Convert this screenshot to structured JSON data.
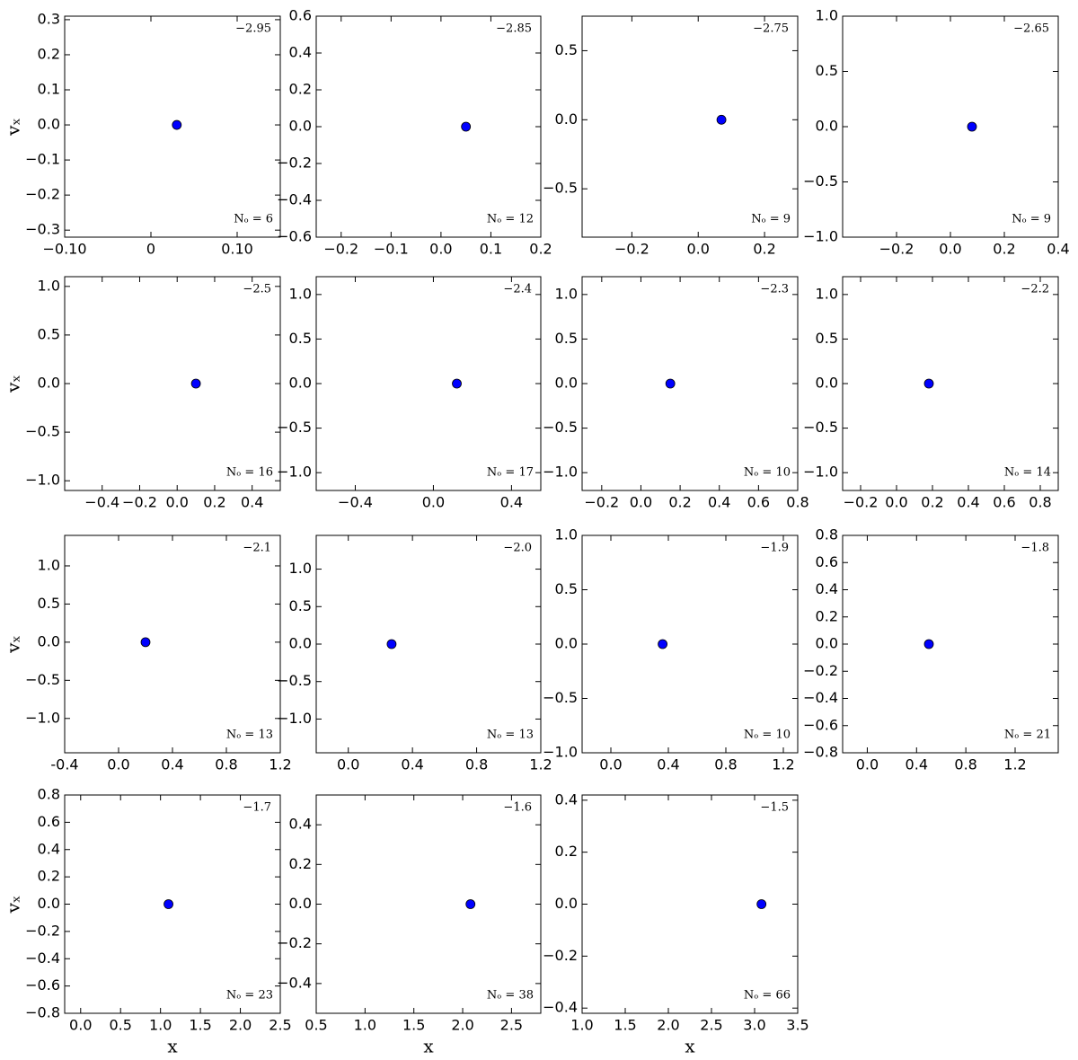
{
  "chart_data": [
    {
      "type": "scatter",
      "annotations": [
        "−2.95",
        "Nₒ = 6"
      ],
      "ylabel": "vₓ",
      "x": [
        0.03
      ],
      "values": [
        0
      ],
      "color": "#0000ff",
      "xlim": [
        -0.1,
        0.15
      ],
      "xticks": [
        {
          "value": -0.1,
          "label": "−0.10"
        },
        0,
        {
          "value": 0.1,
          "label": "0.10"
        }
      ],
      "ylim": [
        -0.32,
        0.31
      ],
      "yticks": [
        {
          "value": -0.3,
          "label": "−0.3"
        },
        {
          "value": -0.2,
          "label": "−0.2"
        },
        {
          "value": -0.1,
          "label": "−0.1"
        },
        {
          "value": 0,
          "label": "0.0"
        },
        {
          "value": 0.1,
          "label": "0.1"
        },
        {
          "value": 0.2,
          "label": "0.2"
        },
        {
          "value": 0.3,
          "label": "0.3"
        }
      ]
    },
    {
      "type": "scatter",
      "annotations": [
        "−2.85",
        "Nₒ = 12"
      ],
      "x": [
        0.05
      ],
      "values": [
        0
      ],
      "color": "#0000ff",
      "xlim": [
        -0.25,
        0.2
      ],
      "xticks": [
        {
          "value": -0.2,
          "label": "−0.2"
        },
        {
          "value": -0.1,
          "label": "−0.1"
        },
        {
          "value": 0,
          "label": "0.0"
        },
        {
          "value": 0.1,
          "label": "0.1"
        },
        {
          "value": 0.2,
          "label": "0.2"
        }
      ],
      "ylim": [
        -0.6,
        0.6
      ],
      "yticks": [
        {
          "value": -0.6,
          "label": "−0.6"
        },
        {
          "value": -0.4,
          "label": "−0.4"
        },
        {
          "value": -0.2,
          "label": "−0.2"
        },
        {
          "value": 0,
          "label": "0.0"
        },
        {
          "value": 0.2,
          "label": "0.2"
        },
        {
          "value": 0.4,
          "label": "0.4"
        },
        {
          "value": 0.6,
          "label": "0.6"
        }
      ]
    },
    {
      "type": "scatter",
      "annotations": [
        "−2.75",
        "Nₒ = 9"
      ],
      "x": [
        0.07
      ],
      "values": [
        0
      ],
      "color": "#0000ff",
      "xlim": [
        -0.35,
        0.3
      ],
      "xticks": [
        {
          "value": -0.2,
          "label": "−0.2"
        },
        {
          "value": 0,
          "label": "0.0"
        },
        {
          "value": 0.2,
          "label": "0.2"
        }
      ],
      "ylim": [
        -0.85,
        0.75
      ],
      "yticks": [
        {
          "value": -0.5,
          "label": "−0.5"
        },
        {
          "value": 0,
          "label": "0.0"
        },
        {
          "value": 0.5,
          "label": "0.5"
        }
      ]
    },
    {
      "type": "scatter",
      "annotations": [
        "−2.65",
        "Nₒ = 9"
      ],
      "x": [
        0.08
      ],
      "values": [
        0
      ],
      "color": "#0000ff",
      "xlim": [
        -0.4,
        0.4
      ],
      "xticks": [
        {
          "value": -0.2,
          "label": "−0.2"
        },
        {
          "value": 0,
          "label": "0.0"
        },
        {
          "value": 0.2,
          "label": "0.2"
        },
        {
          "value": 0.4,
          "label": "0.4"
        }
      ],
      "ylim": [
        -1,
        1
      ],
      "yticks": [
        {
          "value": -1,
          "label": "−1.0"
        },
        {
          "value": -0.5,
          "label": "−0.5"
        },
        {
          "value": 0,
          "label": "0.0"
        },
        {
          "value": 0.5,
          "label": "0.5"
        },
        {
          "value": 1,
          "label": "1.0"
        }
      ]
    },
    {
      "type": "scatter",
      "annotations": [
        "−2.5",
        "Nₒ = 16"
      ],
      "ylabel": "vₓ",
      "x": [
        0.1
      ],
      "values": [
        0
      ],
      "color": "#0000ff",
      "xlim": [
        -0.6,
        0.55
      ],
      "xticks": [
        {
          "value": -0.4,
          "label": "−0.4"
        },
        {
          "value": -0.2,
          "label": "−0.2"
        },
        {
          "value": 0,
          "label": "0.0"
        },
        {
          "value": 0.2,
          "label": "0.2"
        },
        {
          "value": 0.4,
          "label": "0.4"
        }
      ],
      "ylim": [
        -1.1,
        1.1
      ],
      "yticks": [
        {
          "value": -1,
          "label": "−1.0"
        },
        {
          "value": -0.5,
          "label": "−0.5"
        },
        {
          "value": 0,
          "label": "0.0"
        },
        {
          "value": 0.5,
          "label": "0.5"
        },
        {
          "value": 1,
          "label": "1.0"
        }
      ]
    },
    {
      "type": "scatter",
      "annotations": [
        "−2.4",
        "Nₒ = 17"
      ],
      "x": [
        0.12
      ],
      "values": [
        0
      ],
      "color": "#0000ff",
      "xlim": [
        -0.6,
        0.55
      ],
      "xticks": [
        {
          "value": -0.4,
          "label": "−0.4"
        },
        {
          "value": 0,
          "label": "0.0"
        },
        {
          "value": 0.4,
          "label": "0.4"
        }
      ],
      "ylim": [
        -1.2,
        1.2
      ],
      "yticks": [
        {
          "value": -1,
          "label": "−1.0"
        },
        {
          "value": -0.5,
          "label": "−0.5"
        },
        {
          "value": 0,
          "label": "0.0"
        },
        {
          "value": 0.5,
          "label": "0.5"
        },
        {
          "value": 1,
          "label": "1.0"
        }
      ]
    },
    {
      "type": "scatter",
      "annotations": [
        "−2.3",
        "Nₒ = 10"
      ],
      "x": [
        0.15
      ],
      "values": [
        0
      ],
      "color": "#0000ff",
      "xlim": [
        -0.3,
        0.8
      ],
      "xticks": [
        {
          "value": -0.2,
          "label": "−0.2"
        },
        {
          "value": 0,
          "label": "0.0"
        },
        {
          "value": 0.2,
          "label": "0.2"
        },
        {
          "value": 0.4,
          "label": "0.4"
        },
        {
          "value": 0.6,
          "label": "0.6"
        },
        {
          "value": 0.8,
          "label": "0.8"
        }
      ],
      "ylim": [
        -1.2,
        1.2
      ],
      "yticks": [
        {
          "value": -1,
          "label": "−1.0"
        },
        {
          "value": -0.5,
          "label": "−0.5"
        },
        {
          "value": 0,
          "label": "0.0"
        },
        {
          "value": 0.5,
          "label": "0.5"
        },
        {
          "value": 1,
          "label": "1.0"
        }
      ]
    },
    {
      "type": "scatter",
      "annotations": [
        "−2.2",
        "Nₒ = 14"
      ],
      "x": [
        0.18
      ],
      "values": [
        0
      ],
      "color": "#0000ff",
      "xlim": [
        -0.3,
        0.9
      ],
      "xticks": [
        {
          "value": -0.2,
          "label": "−0.2"
        },
        {
          "value": 0,
          "label": "0.0"
        },
        {
          "value": 0.2,
          "label": "0.2"
        },
        {
          "value": 0.4,
          "label": "0.4"
        },
        {
          "value": 0.6,
          "label": "0.6"
        },
        {
          "value": 0.8,
          "label": "0.8"
        }
      ],
      "ylim": [
        -1.2,
        1.2
      ],
      "yticks": [
        {
          "value": -1,
          "label": "−1.0"
        },
        {
          "value": -0.5,
          "label": "−0.5"
        },
        {
          "value": 0,
          "label": "0.0"
        },
        {
          "value": 0.5,
          "label": "0.5"
        },
        {
          "value": 1,
          "label": "1.0"
        }
      ]
    },
    {
      "type": "scatter",
      "annotations": [
        "−2.1",
        "Nₒ = 13"
      ],
      "ylabel": "vₓ",
      "x": [
        0.2
      ],
      "values": [
        0
      ],
      "color": "#0000ff",
      "xlim": [
        -0.4,
        1.2
      ],
      "xticks": [
        {
          "value": -0.4,
          "label": "-0.4"
        },
        {
          "value": 0,
          "label": "0.0"
        },
        {
          "value": 0.4,
          "label": "0.4"
        },
        {
          "value": 0.8,
          "label": "0.8"
        },
        {
          "value": 1.2,
          "label": "1.2"
        }
      ],
      "ylim": [
        -1.45,
        1.4
      ],
      "yticks": [
        {
          "value": -1,
          "label": "−1.0"
        },
        {
          "value": -0.5,
          "label": "−0.5"
        },
        {
          "value": 0,
          "label": "0.0"
        },
        {
          "value": 0.5,
          "label": "0.5"
        },
        {
          "value": 1,
          "label": "1.0"
        }
      ]
    },
    {
      "type": "scatter",
      "annotations": [
        "−2.0",
        "Nₒ = 13"
      ],
      "x": [
        0.27
      ],
      "values": [
        0
      ],
      "color": "#0000ff",
      "xlim": [
        -0.2,
        1.2
      ],
      "xticks": [
        {
          "value": 0,
          "label": "0.0"
        },
        {
          "value": 0.4,
          "label": "0.4"
        },
        {
          "value": 0.8,
          "label": "0.8"
        },
        {
          "value": 1.2,
          "label": "1.2"
        }
      ],
      "ylim": [
        -1.45,
        1.45
      ],
      "yticks": [
        {
          "value": -1,
          "label": "−1.0"
        },
        {
          "value": -0.5,
          "label": "−0.5"
        },
        {
          "value": 0,
          "label": "0.0"
        },
        {
          "value": 0.5,
          "label": "0.5"
        },
        {
          "value": 1,
          "label": "1.0"
        }
      ]
    },
    {
      "type": "scatter",
      "annotations": [
        "−1.9",
        "Nₒ = 10"
      ],
      "x": [
        0.36
      ],
      "values": [
        0
      ],
      "color": "#0000ff",
      "xlim": [
        -0.2,
        1.3
      ],
      "xticks": [
        {
          "value": 0,
          "label": "0.0"
        },
        {
          "value": 0.4,
          "label": "0.4"
        },
        {
          "value": 0.8,
          "label": "0.8"
        },
        {
          "value": 1.2,
          "label": "1.2"
        }
      ],
      "ylim": [
        -1,
        1
      ],
      "yticks": [
        {
          "value": -1,
          "label": "−1.0"
        },
        {
          "value": -0.5,
          "label": "−0.5"
        },
        {
          "value": 0,
          "label": "0.0"
        },
        {
          "value": 0.5,
          "label": "0.5"
        },
        {
          "value": 1,
          "label": "1.0"
        }
      ]
    },
    {
      "type": "scatter",
      "annotations": [
        "−1.8",
        "Nₒ = 21"
      ],
      "x": [
        0.5
      ],
      "values": [
        0
      ],
      "color": "#0000ff",
      "xlim": [
        -0.2,
        1.55
      ],
      "xticks": [
        {
          "value": 0,
          "label": "0.0"
        },
        {
          "value": 0.4,
          "label": "0.4"
        },
        {
          "value": 0.8,
          "label": "0.8"
        },
        {
          "value": 1.2,
          "label": "1.2"
        }
      ],
      "ylim": [
        -0.8,
        0.8
      ],
      "yticks": [
        {
          "value": -0.8,
          "label": "−0.8"
        },
        {
          "value": -0.6,
          "label": "−0.6"
        },
        {
          "value": -0.4,
          "label": "−0.4"
        },
        {
          "value": -0.2,
          "label": "−0.2"
        },
        {
          "value": 0,
          "label": "0.0"
        },
        {
          "value": 0.2,
          "label": "0.2"
        },
        {
          "value": 0.4,
          "label": "0.4"
        },
        {
          "value": 0.6,
          "label": "0.6"
        },
        {
          "value": 0.8,
          "label": "0.8"
        }
      ]
    },
    {
      "type": "scatter",
      "annotations": [
        "−1.7",
        "Nₒ = 23"
      ],
      "ylabel": "vₓ",
      "xlabel": "x",
      "x": [
        1.1
      ],
      "values": [
        0
      ],
      "color": "#0000ff",
      "xlim": [
        -0.2,
        2.5
      ],
      "xticks": [
        {
          "value": 0,
          "label": "0.0"
        },
        {
          "value": 0.5,
          "label": "0.5"
        },
        {
          "value": 1,
          "label": "1.0"
        },
        {
          "value": 1.5,
          "label": "1.5"
        },
        {
          "value": 2,
          "label": "2.0"
        },
        2.5
      ],
      "ylim": [
        -0.8,
        0.8
      ],
      "yticks": [
        {
          "value": -0.8,
          "label": "−0.8"
        },
        {
          "value": -0.6,
          "label": "−0.6"
        },
        {
          "value": -0.4,
          "label": "−0.4"
        },
        {
          "value": -0.2,
          "label": "−0.2"
        },
        {
          "value": 0,
          "label": "0.0"
        },
        {
          "value": 0.2,
          "label": "0.2"
        },
        {
          "value": 0.4,
          "label": "0.4"
        },
        {
          "value": 0.6,
          "label": "0.6"
        },
        {
          "value": 0.8,
          "label": "0.8"
        }
      ]
    },
    {
      "type": "scatter",
      "annotations": [
        "−1.6",
        "Nₒ = 38"
      ],
      "xlabel": "x",
      "x": [
        2.08
      ],
      "values": [
        0
      ],
      "color": "#0000ff",
      "xlim": [
        0.5,
        2.8
      ],
      "xticks": [
        0.5,
        {
          "value": 1,
          "label": "1.0"
        },
        1.5,
        {
          "value": 2,
          "label": "2.0"
        },
        2.5
      ],
      "ylim": [
        -0.55,
        0.55
      ],
      "yticks": [
        {
          "value": -0.4,
          "label": "−0.4"
        },
        {
          "value": -0.2,
          "label": "−0.2"
        },
        {
          "value": 0,
          "label": "0.0"
        },
        {
          "value": 0.2,
          "label": "0.2"
        },
        {
          "value": 0.4,
          "label": "0.4"
        }
      ]
    },
    {
      "type": "scatter",
      "annotations": [
        "−1.5",
        "Nₒ = 66"
      ],
      "xlabel": "x",
      "x": [
        3.08
      ],
      "values": [
        0
      ],
      "color": "#0000ff",
      "xlim": [
        1,
        3.5
      ],
      "xticks": [
        {
          "value": 1,
          "label": "1.0"
        },
        1.5,
        {
          "value": 2,
          "label": "2.0"
        },
        2.5,
        {
          "value": 3,
          "label": "3.0"
        },
        3.5
      ],
      "ylim": [
        -0.42,
        0.42
      ],
      "yticks": [
        {
          "value": -0.4,
          "label": "−0.4"
        },
        {
          "value": -0.2,
          "label": "−0.2"
        },
        {
          "value": 0,
          "label": "0.0"
        },
        {
          "value": 0.2,
          "label": "0.2"
        },
        {
          "value": 0.4,
          "label": "0.4"
        }
      ]
    }
  ]
}
